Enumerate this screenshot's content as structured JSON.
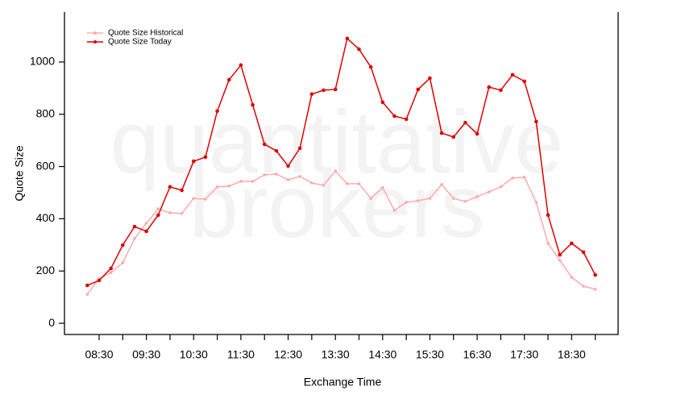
{
  "chart_data": {
    "type": "line",
    "watermark": [
      "quantitative",
      "brokers"
    ],
    "x_label": "Exchange Time",
    "y_label": "Quote Size",
    "x": [
      "08:15",
      "08:30",
      "08:45",
      "09:00",
      "09:15",
      "09:30",
      "09:45",
      "10:00",
      "10:15",
      "10:30",
      "10:45",
      "11:00",
      "11:15",
      "11:30",
      "11:45",
      "12:00",
      "12:15",
      "12:30",
      "12:45",
      "13:00",
      "13:15",
      "13:30",
      "13:45",
      "14:00",
      "14:15",
      "14:30",
      "14:45",
      "15:00",
      "15:15",
      "15:30",
      "15:45",
      "16:00",
      "16:15",
      "16:30",
      "16:45",
      "17:00",
      "17:15",
      "17:30",
      "17:45",
      "18:00",
      "18:15",
      "18:30",
      "18:45",
      "19:00"
    ],
    "series": [
      {
        "name": "Quote Size Historical",
        "color": "#ffaaaa",
        "values": [
          111,
          170,
          194,
          231,
          324,
          383,
          438,
          423,
          420,
          478,
          475,
          522,
          525,
          543,
          543,
          568,
          571,
          549,
          562,
          537,
          528,
          583,
          534,
          534,
          478,
          519,
          432,
          463,
          469,
          478,
          531,
          478,
          466,
          485,
          503,
          522,
          556,
          559,
          463,
          306,
          241,
          176,
          142,
          130
        ]
      },
      {
        "name": "Quote Size Today",
        "color": "#dd0000",
        "values": [
          145,
          164,
          210,
          299,
          370,
          352,
          414,
          522,
          509,
          620,
          636,
          812,
          932,
          988,
          836,
          685,
          660,
          602,
          670,
          877,
          892,
          895,
          1090,
          1049,
          981,
          846,
          793,
          781,
          895,
          938,
          728,
          713,
          768,
          725,
          904,
          892,
          951,
          926,
          772,
          414,
          262,
          306,
          272,
          185
        ]
      }
    ],
    "xlim": [
      "07:46",
      "19:29"
    ],
    "xticks": [
      "08:30",
      "09:30",
      "10:30",
      "11:30",
      "12:30",
      "13:30",
      "14:30",
      "15:30",
      "16:30",
      "17:30",
      "18:30"
    ],
    "ylim": [
      -43,
      1191
    ],
    "yticks": [
      0,
      200,
      400,
      600,
      800,
      1000
    ],
    "legend": "top-left"
  }
}
